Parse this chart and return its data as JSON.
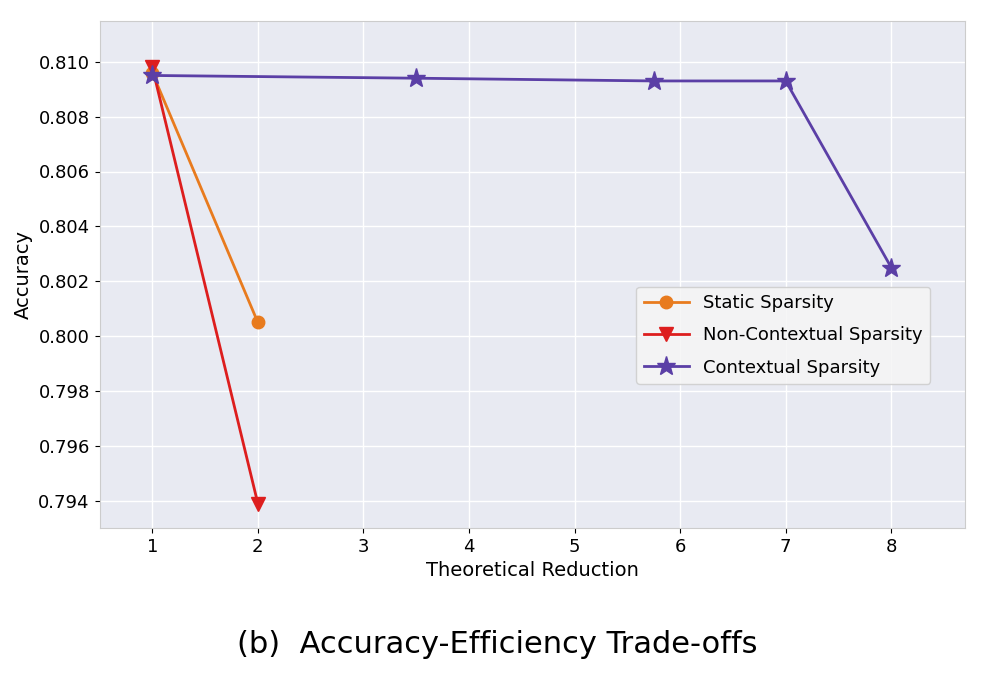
{
  "static_sparsity": {
    "x": [
      1,
      2
    ],
    "y": [
      0.8096,
      0.8005
    ],
    "color": "#E87B1E",
    "marker": "o",
    "markersize": 9,
    "label": "Static Sparsity"
  },
  "non_contextual_sparsity": {
    "x": [
      1,
      2
    ],
    "y": [
      0.8098,
      0.7939
    ],
    "color": "#DD1E1E",
    "marker": "v",
    "markersize": 10,
    "label": "Non-Contextual Sparsity"
  },
  "contextual_sparsity": {
    "x": [
      1,
      3.5,
      5.75,
      7,
      8
    ],
    "y": [
      0.8095,
      0.8094,
      0.8093,
      0.8093,
      0.8025
    ],
    "color": "#5B3FA6",
    "marker": "*",
    "markersize": 14,
    "label": "Contextual Sparsity"
  },
  "xlabel": "Theoretical Reduction",
  "ylabel": "Accuracy",
  "title": "(b)  Accuracy-Efficiency Trade-offs",
  "xlim": [
    0.5,
    8.7
  ],
  "ylim": [
    0.793,
    0.8115
  ],
  "yticks": [
    0.794,
    0.796,
    0.798,
    0.8,
    0.802,
    0.804,
    0.806,
    0.808,
    0.81
  ],
  "xticks": [
    1,
    2,
    3,
    4,
    5,
    6,
    7,
    8
  ],
  "axes_facecolor": "#E8EAF2",
  "fig_facecolor": "#FFFFFF",
  "linewidth": 2.0,
  "legend_fontsize": 13,
  "axis_fontsize": 14,
  "tick_fontsize": 13,
  "title_fontsize": 22,
  "grid_color": "#FFFFFF",
  "grid_linewidth": 1.0
}
